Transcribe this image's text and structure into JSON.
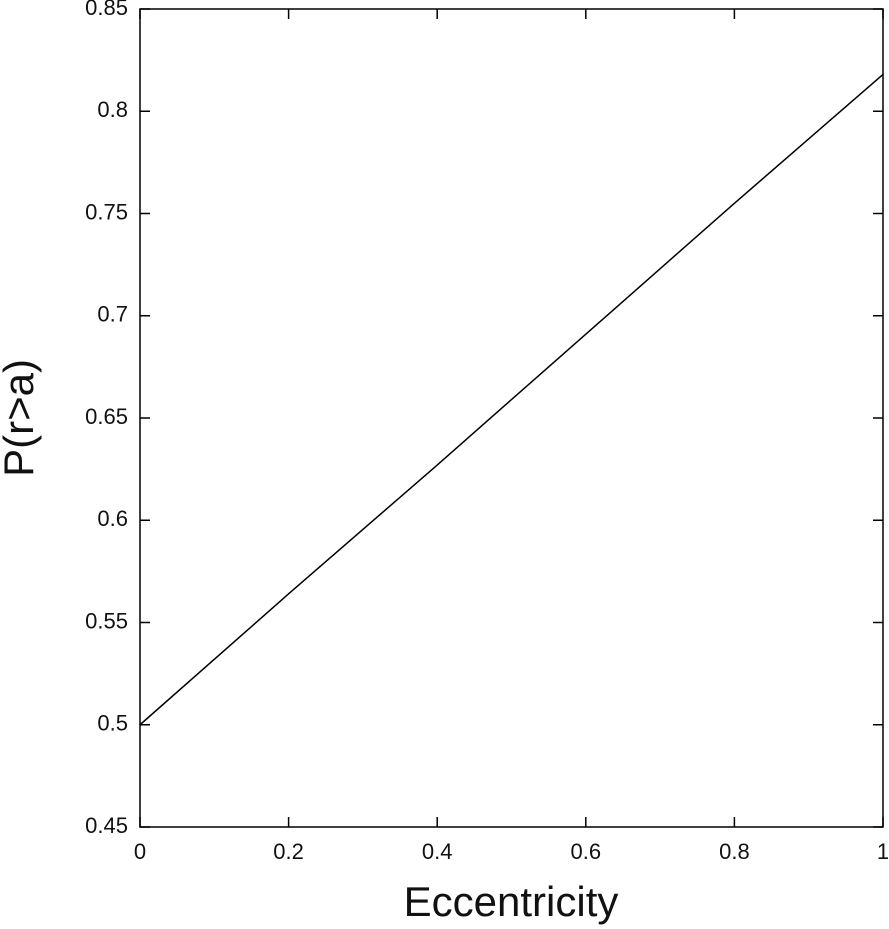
{
  "chart_data": {
    "type": "line",
    "x_label": "Eccentricity",
    "y_label": "P(r>a)",
    "x": [
      0,
      0.2,
      0.4,
      0.6,
      0.8,
      1
    ],
    "series": [
      {
        "color": "#000000",
        "values": [
          0.5,
          0.564,
          0.627,
          0.691,
          0.755,
          0.818
        ]
      }
    ],
    "xlim": [
      0,
      1
    ],
    "xticks": [
      0,
      0.2,
      0.4,
      0.6,
      0.8,
      1
    ],
    "ylim": [
      0.45,
      0.85
    ],
    "yticks": [
      0.45,
      0.5,
      0.55,
      0.6,
      0.65,
      0.7,
      0.75,
      0.8,
      0.85
    ],
    "grid": false
  }
}
